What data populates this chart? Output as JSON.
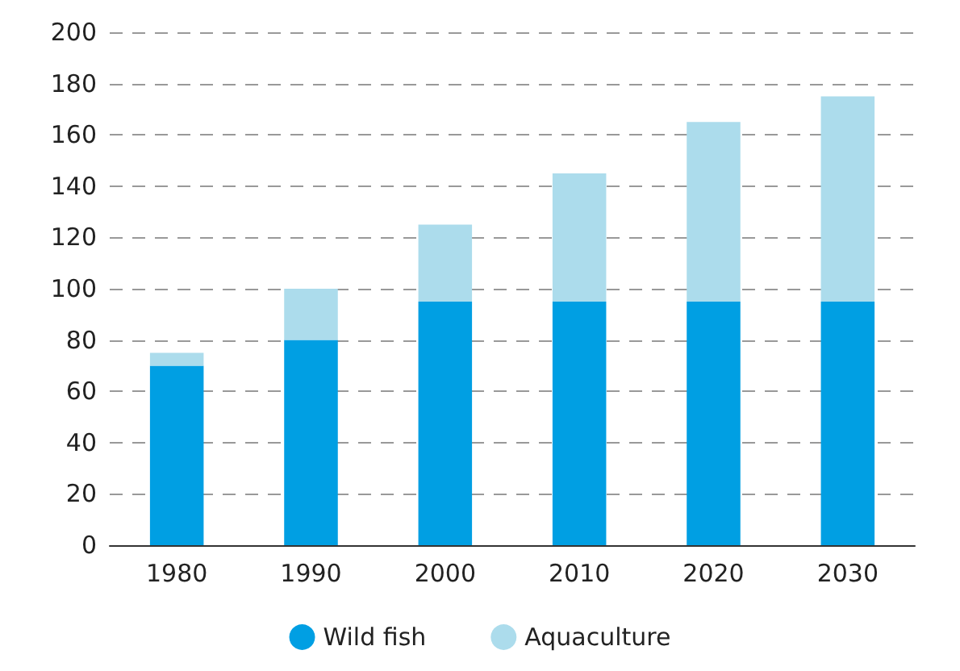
{
  "chart_data": {
    "type": "bar",
    "stacked": true,
    "categories": [
      "1980",
      "1990",
      "2000",
      "2010",
      "2020",
      "2030"
    ],
    "series": [
      {
        "name": "Wild fish",
        "color": "#009fe3",
        "values": [
          70,
          80,
          95,
          95,
          95,
          95
        ]
      },
      {
        "name": "Aquaculture",
        "color": "#acdcec",
        "values": [
          5,
          20,
          30,
          50,
          70,
          80
        ]
      }
    ],
    "ylim": [
      0,
      200
    ],
    "yticks": [
      0,
      20,
      40,
      60,
      80,
      100,
      120,
      140,
      160,
      180,
      200
    ],
    "grid": "y",
    "legend": "bottom"
  }
}
